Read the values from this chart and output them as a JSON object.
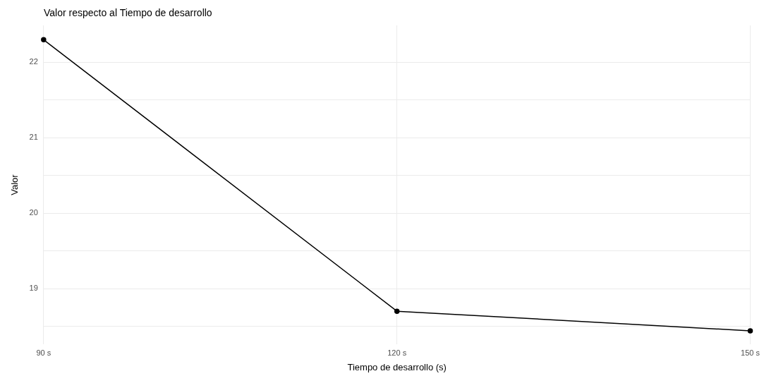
{
  "chart_data": {
    "type": "line",
    "title": "Valor respecto al Tiempo de desarrollo",
    "xlabel": "Tiempo de desarrollo (s)",
    "ylabel": "Valor",
    "categories": [
      "90 s",
      "120 s",
      "150 s"
    ],
    "series": [
      {
        "color": "#000000",
        "values": [
          22.3,
          18.7,
          18.44
        ]
      }
    ],
    "ylim": [
      18.26,
      22.49
    ],
    "yticks": [
      {
        "value": 18.5,
        "label": null
      },
      19,
      {
        "value": 19.5,
        "label": null
      },
      20,
      {
        "value": 20.5,
        "label": null
      },
      21,
      {
        "value": 21.5,
        "label": null
      },
      22
    ],
    "grid": true,
    "legend": false,
    "marker": "circle",
    "line_style": "solid"
  }
}
